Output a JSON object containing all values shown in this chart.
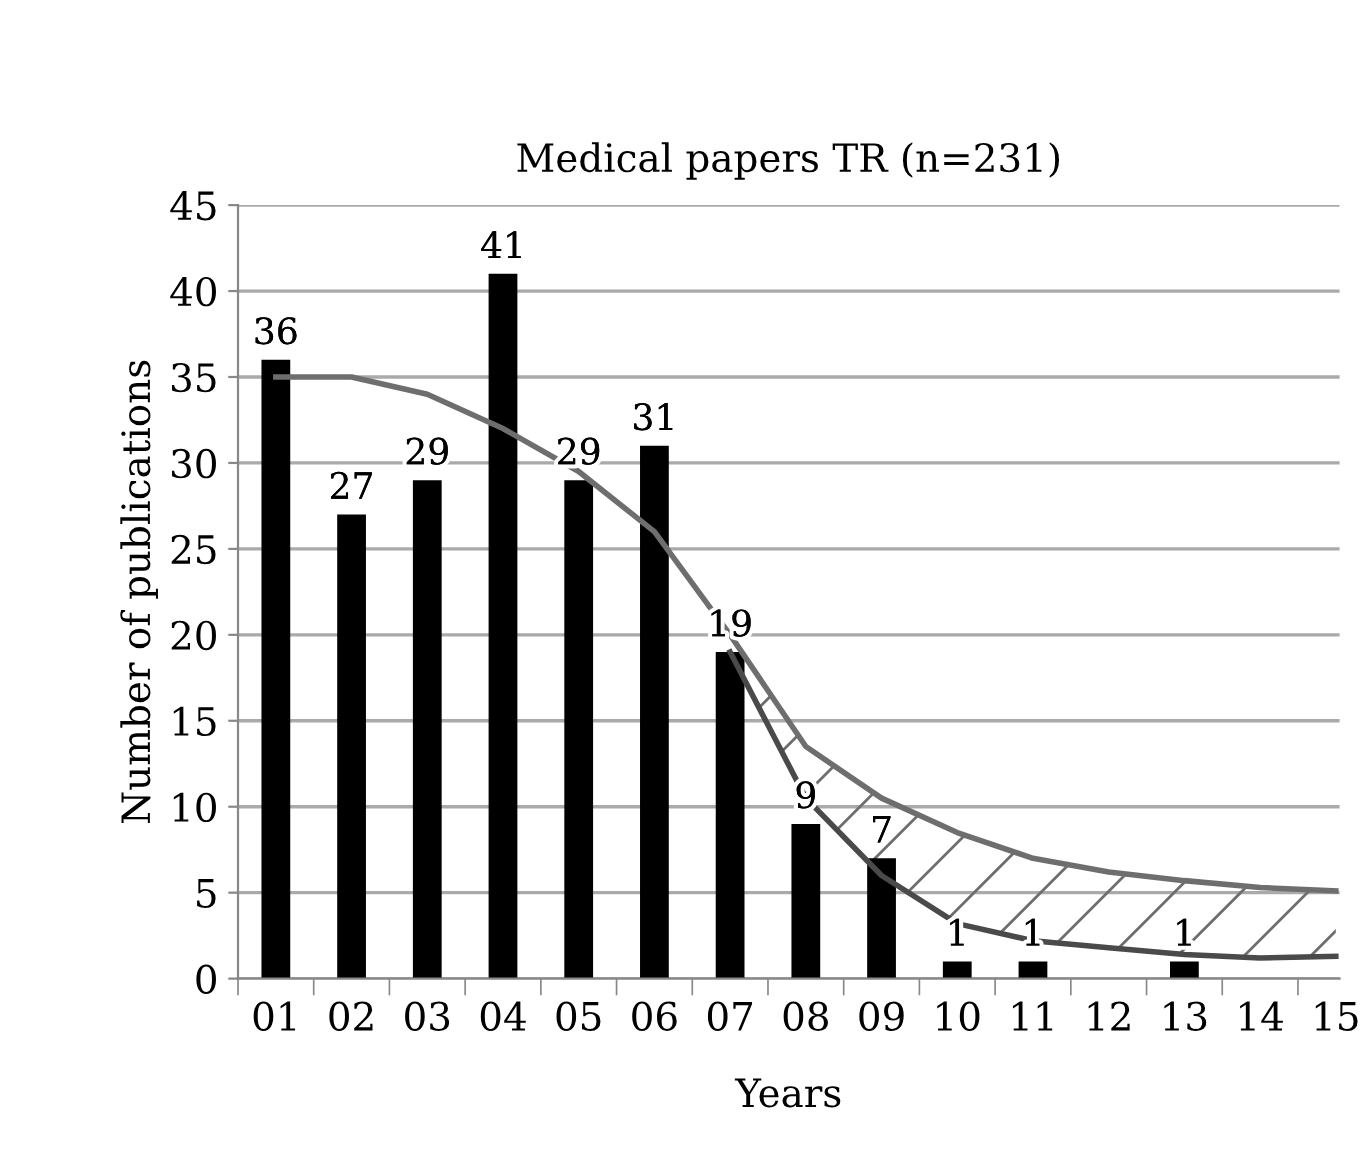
{
  "chart_data": {
    "type": "bar",
    "title": "Medical papers TR (n=231)",
    "xlabel": "Years",
    "ylabel": "Number of publications",
    "categories": [
      "01",
      "02",
      "03",
      "04",
      "05",
      "06",
      "07",
      "08",
      "09",
      "10",
      "11",
      "12",
      "13",
      "14",
      "15"
    ],
    "series": [
      {
        "color": "#000000",
        "values": [
          36,
          27,
          29,
          41,
          29,
          31,
          19,
          9,
          7,
          1,
          1,
          null,
          1,
          null,
          null
        ],
        "value_labels": [
          "36",
          "27",
          "29",
          "41",
          "29",
          "31",
          "19",
          "9",
          "7",
          "1",
          "1",
          null,
          "1",
          null,
          null
        ]
      },
      {
        "type": "line",
        "color": "#6e6e6e",
        "values": [
          35,
          35,
          34,
          32,
          29.5,
          26,
          20,
          13.5,
          10.5,
          8.5,
          7,
          6.2,
          5.7,
          5.3,
          5.1
        ]
      },
      {
        "type": "line",
        "color": "#4a4a4a",
        "values": [
          null,
          null,
          null,
          null,
          null,
          null,
          19,
          10.5,
          6,
          3.2,
          2.2,
          1.8,
          1.4,
          1.2,
          1.3
        ],
        "lower": [
          null,
          null,
          null,
          null,
          null,
          null,
          19,
          10.5,
          6,
          3.2,
          2.2,
          1.8,
          1.4,
          1.2,
          1.3
        ],
        "upper": [
          null,
          null,
          null,
          null,
          null,
          null,
          20,
          13.5,
          10.5,
          8.5,
          7,
          6.2,
          5.7,
          5.3,
          5.1
        ]
      }
    ],
    "ylim": [
      0,
      45
    ],
    "yticks": [
      0,
      5,
      10,
      15,
      20,
      25,
      30,
      35,
      40,
      45
    ],
    "grid": "y"
  }
}
